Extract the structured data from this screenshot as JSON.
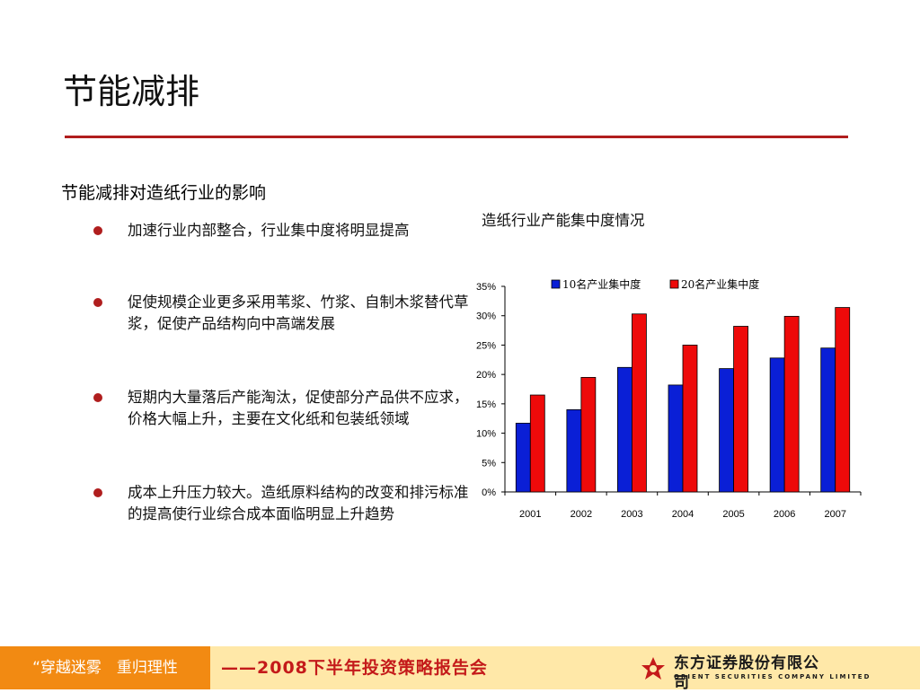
{
  "slide": {
    "title": "节能减排",
    "section_heading": "节能减排对造纸行业的影响",
    "bullets": [
      "加速行业内部整合，行业集中度将明显提高",
      "促使规模企业更多采用苇浆、竹浆、自制木浆替代草浆，促使产品结构向中高端发展",
      "短期内大量落后产能淘汰，促使部分产品供不应求，价格大幅上升，主要在文化纸和包装纸领域",
      "成本上升压力较大。造纸原料结构的改变和排污标准的提高使行业综合成本面临明显上升趋势"
    ]
  },
  "colors": {
    "accent_red": "#b01e1e",
    "series_blue": "#0a1fd6",
    "series_red": "#ee0a0a",
    "footer_orange": "#f28a12",
    "footer_yellow": "#ffe8a8"
  },
  "chart_data": {
    "type": "bar",
    "title": "造纸行业产能集中度情况",
    "categories": [
      "2001",
      "2002",
      "2003",
      "2004",
      "2005",
      "2006",
      "2007"
    ],
    "series": [
      {
        "name": "10名产业集中度",
        "values": [
          11.7,
          14.0,
          21.2,
          18.2,
          21.0,
          22.8,
          24.5
        ]
      },
      {
        "name": "20名产业集中度",
        "values": [
          16.5,
          19.5,
          30.3,
          25.0,
          28.2,
          29.9,
          31.4
        ]
      }
    ],
    "yticks": [
      "0%",
      "5%",
      "10%",
      "15%",
      "20%",
      "25%",
      "30%",
      "35%"
    ],
    "ylim": [
      0,
      35
    ],
    "xlabel": "",
    "ylabel": "",
    "grid": false,
    "legend": "top"
  },
  "footer": {
    "slogan": "“穿越迷雾　重归理性",
    "conference": "——2008下半年投资策略报告会",
    "logo_cn": "东方证券股份有限公司",
    "logo_en": "ORIENT SECURITIES COMPANY LIMITED"
  }
}
